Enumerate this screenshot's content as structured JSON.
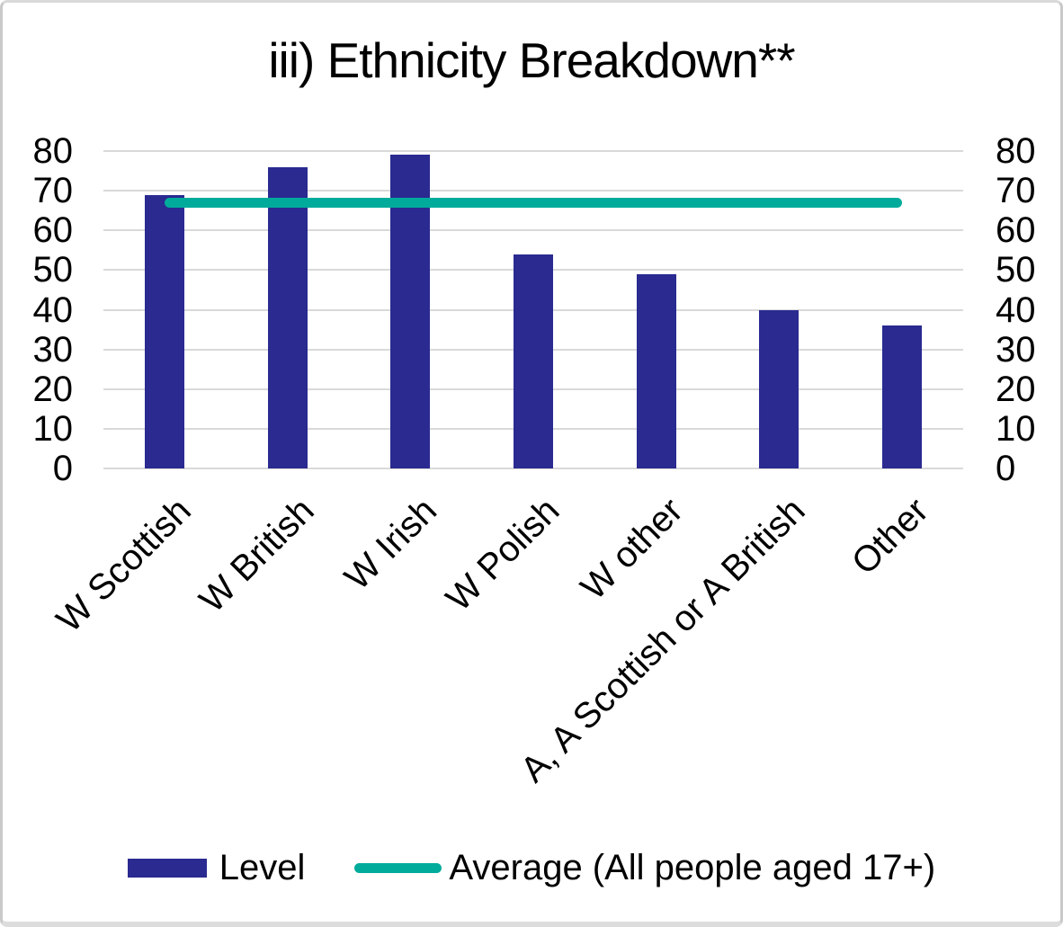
{
  "title": "iii) Ethnicity Breakdown**",
  "chart_data": {
    "type": "bar",
    "title": "iii) Ethnicity Breakdown**",
    "categories": [
      "W Scottish",
      "W British",
      "W Irish",
      "W Polish",
      "W other",
      "A, A Scottish or A British",
      "Other"
    ],
    "series": [
      {
        "name": "Level",
        "type": "bar",
        "color": "#2A2A91",
        "values": [
          69,
          76,
          79,
          54,
          49,
          40,
          36
        ]
      },
      {
        "name": "Average (All people aged 17+)",
        "type": "line",
        "color": "#00AB9B",
        "values": [
          67,
          67,
          67,
          67,
          67,
          67,
          67
        ]
      }
    ],
    "xlabel": "",
    "ylabel": "",
    "ylim": [
      0,
      80
    ],
    "yticks": [
      0,
      10,
      20,
      30,
      40,
      50,
      60,
      70,
      80
    ],
    "grid": true,
    "dual_axis": true,
    "legend_position": "bottom"
  },
  "legend": {
    "items": [
      {
        "label": "Level",
        "marker": "bar",
        "color": "#2A2A91"
      },
      {
        "label": "Average (All people aged 17+)",
        "marker": "line",
        "color": "#00AB9B"
      }
    ]
  },
  "colors": {
    "bar": "#2A2A91",
    "line": "#00AB9B",
    "grid": "#D9D9D9",
    "text": "#000000",
    "border": "#C9C9C9"
  }
}
